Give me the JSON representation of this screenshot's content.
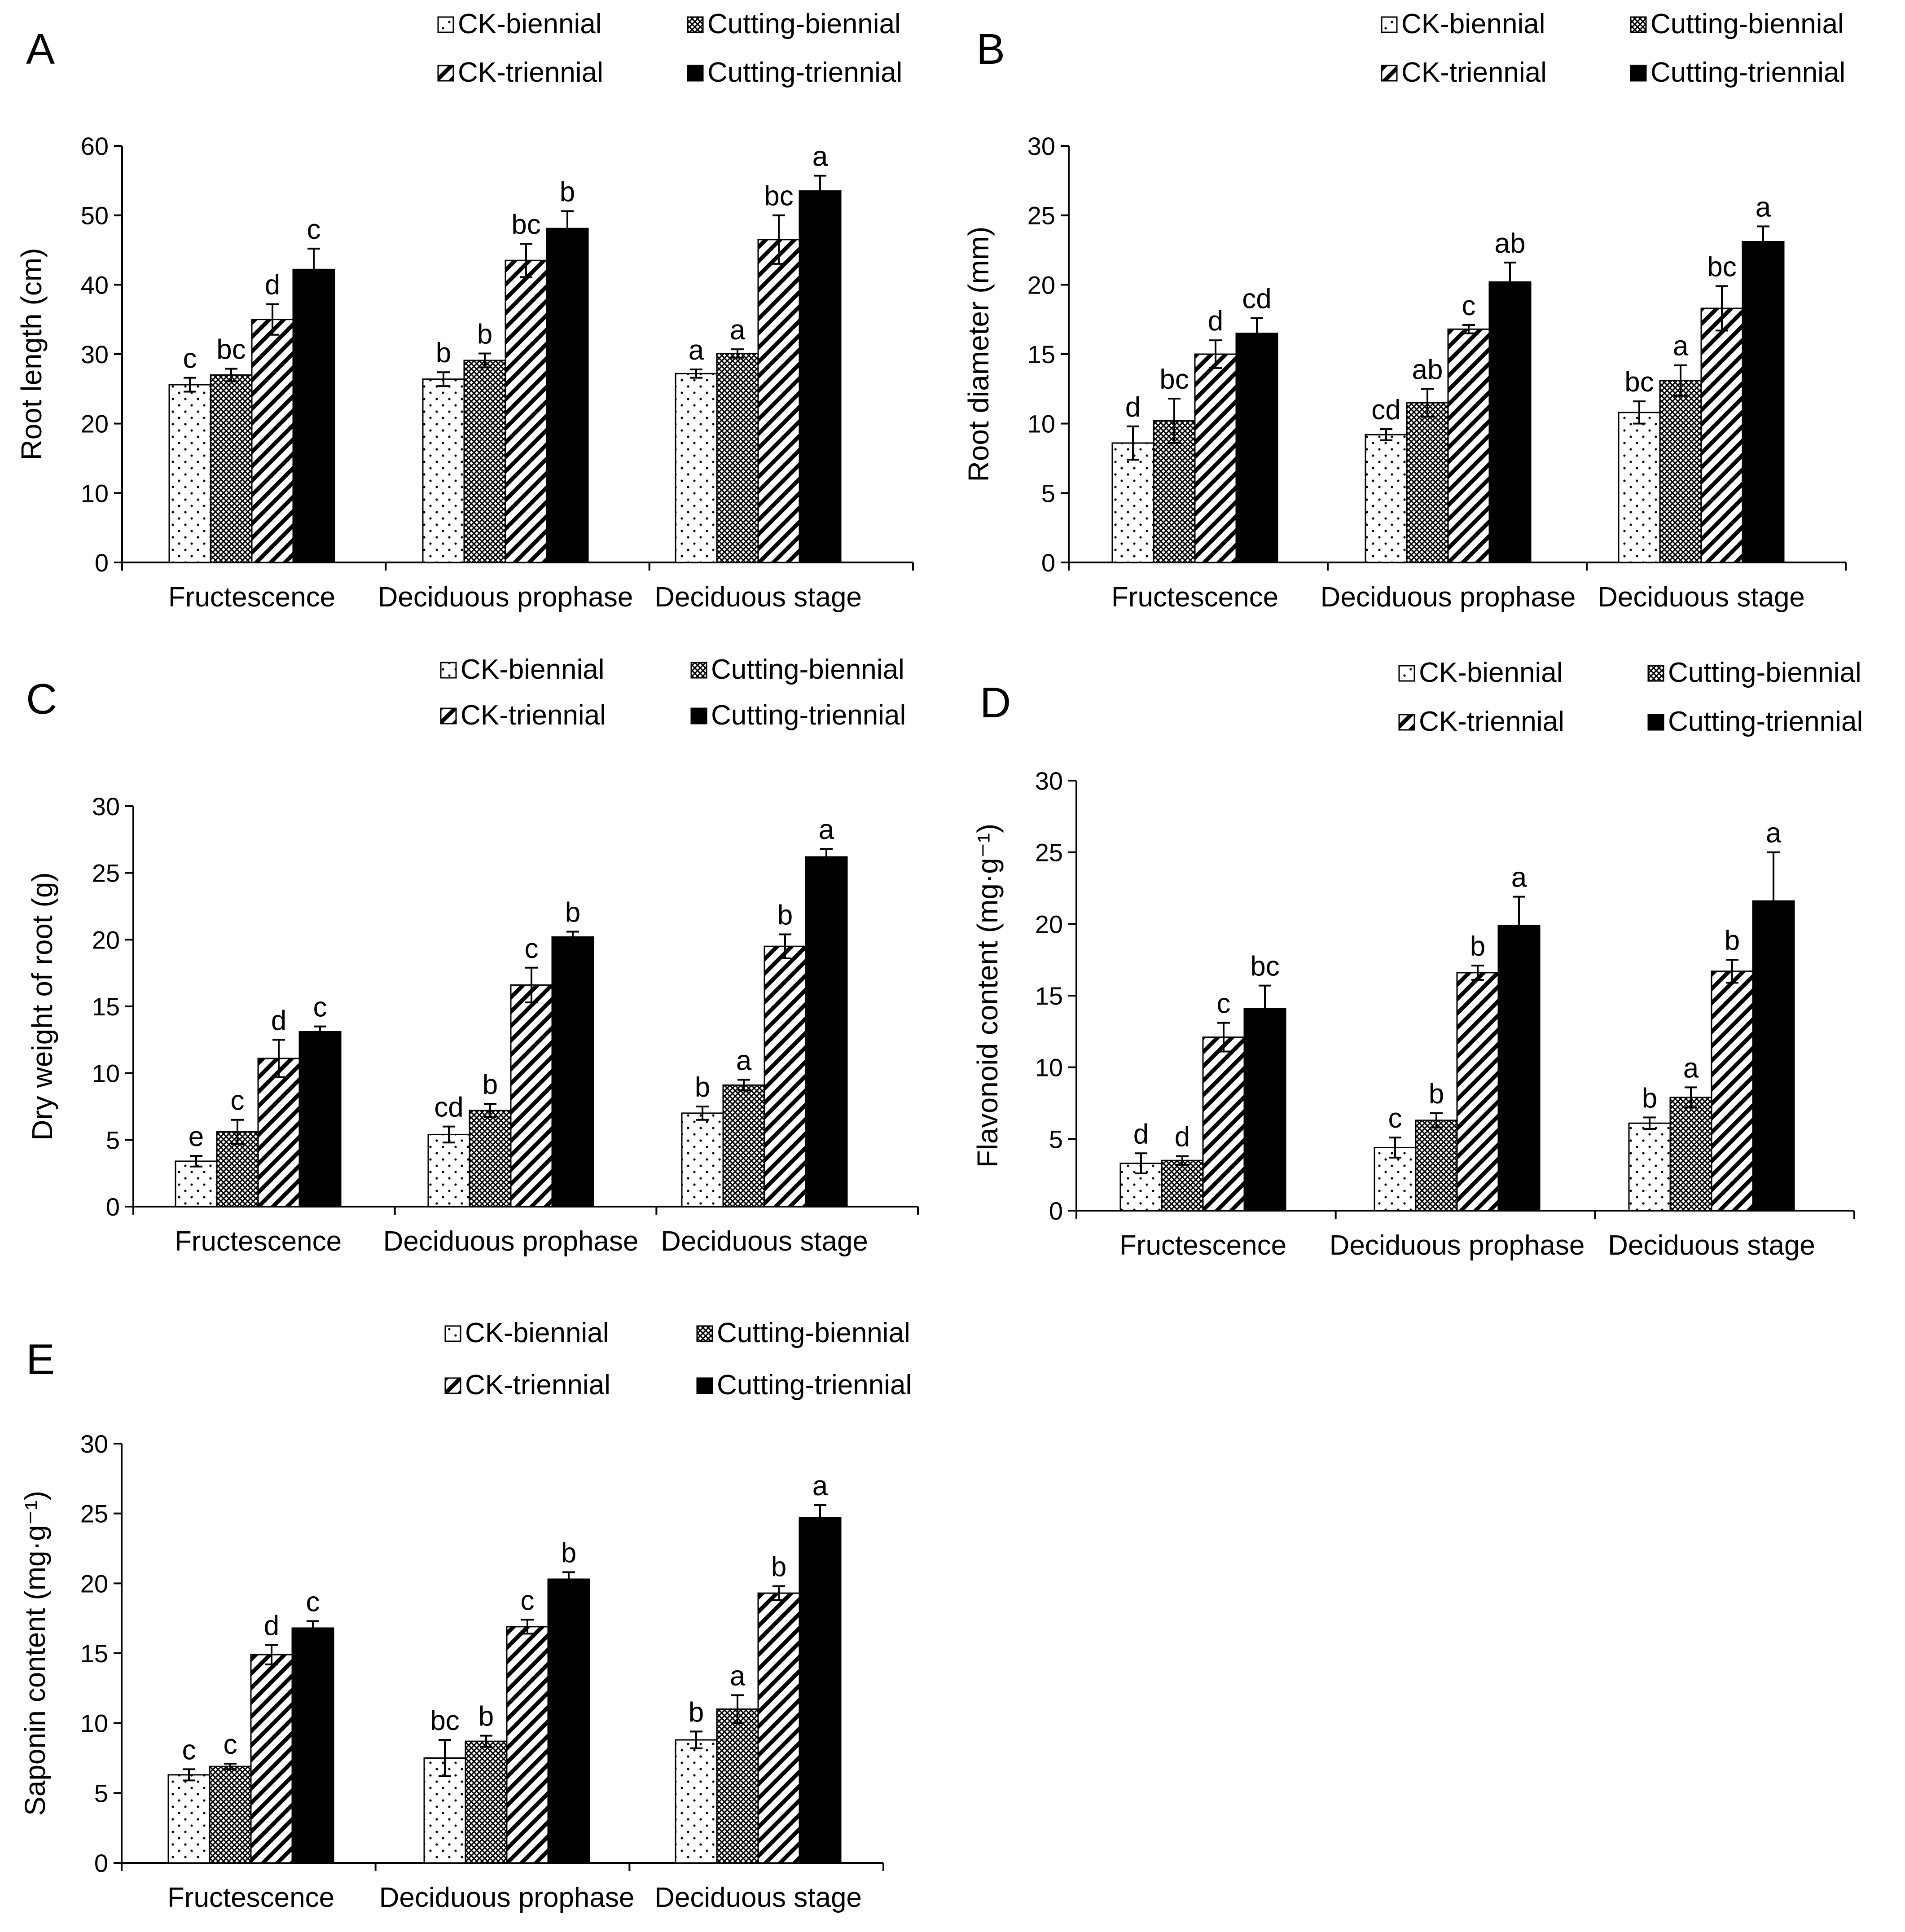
{
  "legend_labels": [
    "CK-biennial",
    "Cutting-biennial",
    "CK-triennial",
    "Cutting-triennial"
  ],
  "series_styles": {
    "CK-biennial": "dots",
    "Cutting-biennial": "crosshatch",
    "CK-triennial": "diagonal-stripes",
    "Cutting-triennial": "solid-black"
  },
  "colors": {
    "bar_fill_solid": "#000000",
    "background": "#ffffff",
    "axis": "#000000"
  },
  "chart_data": [
    {
      "type": "bar",
      "panel": "A",
      "ylabel": "Root length (cm)",
      "ylim": [
        0,
        60
      ],
      "yticks": [
        "0",
        "10",
        "20",
        "30",
        "40",
        "50",
        "60"
      ],
      "categories": [
        "Fructescence",
        "Deciduous prophase",
        "Deciduous stage"
      ],
      "series": [
        {
          "name": "CK-biennial",
          "values": [
            25.6,
            26.4,
            27.2
          ],
          "errors": [
            1.0,
            1.0,
            0.6
          ],
          "sig": [
            "c",
            "b",
            "a"
          ]
        },
        {
          "name": "Cutting-biennial",
          "values": [
            27.0,
            29.1,
            30.1
          ],
          "errors": [
            0.9,
            1.0,
            0.6
          ],
          "sig": [
            "bc",
            "b",
            "a"
          ]
        },
        {
          "name": "CK-triennial",
          "values": [
            35.0,
            43.5,
            46.5
          ],
          "errors": [
            2.2,
            2.4,
            3.5
          ],
          "sig": [
            "d",
            "bc",
            "bc"
          ]
        },
        {
          "name": "Cutting-triennial",
          "values": [
            42.2,
            48.1,
            53.5
          ],
          "errors": [
            3.0,
            2.5,
            2.2
          ],
          "sig": [
            "c",
            "b",
            "a"
          ]
        }
      ]
    },
    {
      "type": "bar",
      "panel": "B",
      "ylabel": "Root diameter (mm)",
      "ylim": [
        0,
        30
      ],
      "yticks": [
        "0",
        "5",
        "10",
        "15",
        "20",
        "25",
        "30"
      ],
      "categories": [
        "Fructescence",
        "Deciduous prophase",
        "Deciduous stage"
      ],
      "series": [
        {
          "name": "CK-biennial",
          "values": [
            8.6,
            9.2,
            10.8
          ],
          "errors": [
            1.2,
            0.4,
            0.8
          ],
          "sig": [
            "d",
            "cd",
            "bc"
          ]
        },
        {
          "name": "Cutting-biennial",
          "values": [
            10.2,
            11.5,
            13.1
          ],
          "errors": [
            1.6,
            1.0,
            1.1
          ],
          "sig": [
            "bc",
            "ab",
            "a"
          ]
        },
        {
          "name": "CK-triennial",
          "values": [
            15.0,
            16.8,
            18.3
          ],
          "errors": [
            1.0,
            0.3,
            1.6
          ],
          "sig": [
            "d",
            "c",
            "bc"
          ]
        },
        {
          "name": "Cutting-triennial",
          "values": [
            16.5,
            20.2,
            23.1
          ],
          "errors": [
            1.1,
            1.4,
            1.1
          ],
          "sig": [
            "cd",
            "ab",
            "a"
          ]
        }
      ]
    },
    {
      "type": "bar",
      "panel": "C",
      "ylabel": "Dry weight of root (g)",
      "ylim": [
        0,
        30
      ],
      "yticks": [
        "0",
        "5",
        "10",
        "15",
        "20",
        "25",
        "30"
      ],
      "categories": [
        "Fructescence",
        "Deciduous prophase",
        "Deciduous stage"
      ],
      "series": [
        {
          "name": "CK-biennial",
          "values": [
            3.4,
            5.4,
            7.0
          ],
          "errors": [
            0.4,
            0.6,
            0.5
          ],
          "sig": [
            "e",
            "cd",
            "b"
          ]
        },
        {
          "name": "Cutting-biennial",
          "values": [
            5.6,
            7.2,
            9.1
          ],
          "errors": [
            0.9,
            0.5,
            0.4
          ],
          "sig": [
            "c",
            "b",
            "a"
          ]
        },
        {
          "name": "CK-triennial",
          "values": [
            11.1,
            16.6,
            19.5
          ],
          "errors": [
            1.4,
            1.3,
            0.9
          ],
          "sig": [
            "d",
            "c",
            "b"
          ]
        },
        {
          "name": "Cutting-triennial",
          "values": [
            13.1,
            20.2,
            26.2
          ],
          "errors": [
            0.4,
            0.4,
            0.6
          ],
          "sig": [
            "c",
            "b",
            "a"
          ]
        }
      ]
    },
    {
      "type": "bar",
      "panel": "D",
      "ylabel": "Flavonoid content (mg·g⁻¹)",
      "ylim": [
        0,
        30
      ],
      "yticks": [
        "0",
        "5",
        "10",
        "15",
        "20",
        "25",
        "30"
      ],
      "categories": [
        "Fructescence",
        "Deciduous prophase",
        "Deciduous stage"
      ],
      "series": [
        {
          "name": "CK-biennial",
          "values": [
            3.3,
            4.4,
            6.1
          ],
          "errors": [
            0.7,
            0.7,
            0.4
          ],
          "sig": [
            "d",
            "c",
            "b"
          ]
        },
        {
          "name": "Cutting-biennial",
          "values": [
            3.5,
            6.3,
            7.9
          ],
          "errors": [
            0.3,
            0.5,
            0.7
          ],
          "sig": [
            "d",
            "b",
            "a"
          ]
        },
        {
          "name": "CK-triennial",
          "values": [
            12.1,
            16.6,
            16.7
          ],
          "errors": [
            1.0,
            0.5,
            0.8
          ],
          "sig": [
            "c",
            "b",
            "b"
          ]
        },
        {
          "name": "Cutting-triennial",
          "values": [
            14.1,
            19.9,
            21.6
          ],
          "errors": [
            1.6,
            2.0,
            3.4
          ],
          "sig": [
            "bc",
            "a",
            "a"
          ]
        }
      ]
    },
    {
      "type": "bar",
      "panel": "E",
      "ylabel": "Saponin content (mg·g⁻¹)",
      "ylim": [
        0,
        30
      ],
      "yticks": [
        "0",
        "5",
        "10",
        "15",
        "20",
        "25",
        "30"
      ],
      "categories": [
        "Fructescence",
        "Deciduous prophase",
        "Deciduous stage"
      ],
      "series": [
        {
          "name": "CK-biennial",
          "values": [
            6.3,
            7.5,
            8.8
          ],
          "errors": [
            0.4,
            1.3,
            0.6
          ],
          "sig": [
            "c",
            "bc",
            "b"
          ]
        },
        {
          "name": "Cutting-biennial",
          "values": [
            6.9,
            8.7,
            11.0
          ],
          "errors": [
            0.2,
            0.4,
            1.0
          ],
          "sig": [
            "c",
            "b",
            "a"
          ]
        },
        {
          "name": "CK-triennial",
          "values": [
            14.9,
            16.9,
            19.3
          ],
          "errors": [
            0.7,
            0.5,
            0.5
          ],
          "sig": [
            "d",
            "c",
            "b"
          ]
        },
        {
          "name": "Cutting-triennial",
          "values": [
            16.8,
            20.3,
            24.7
          ],
          "errors": [
            0.5,
            0.5,
            0.9
          ],
          "sig": [
            "c",
            "b",
            "a"
          ]
        }
      ]
    }
  ]
}
